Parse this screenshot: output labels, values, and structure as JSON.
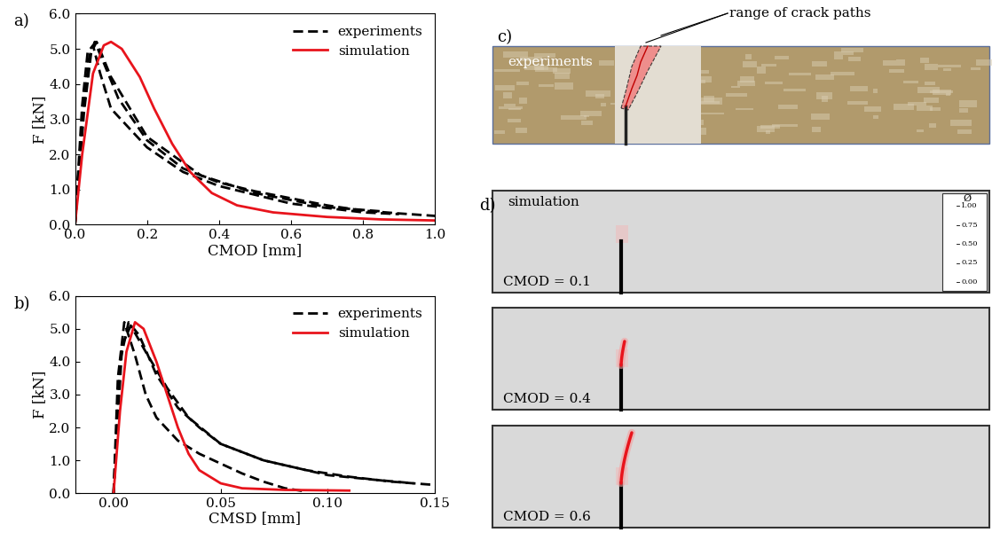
{
  "chart_data": [
    {
      "type": "line",
      "panel_label": "a)",
      "x_label": "CMOD [mm]",
      "y_label": "F [kN]",
      "xlim": [
        0.0,
        1.0
      ],
      "ylim": [
        0.0,
        6.0
      ],
      "xticks": [
        0.0,
        0.2,
        0.4,
        0.6,
        0.8,
        1.0
      ],
      "yticks": [
        0.0,
        1.0,
        2.0,
        3.0,
        4.0,
        5.0,
        6.0
      ],
      "legend": "upper right",
      "series": [
        {
          "name": "experiments",
          "color": "#000000",
          "line_style": "dashed",
          "x": [
            0,
            0.02,
            0.04,
            0.055,
            0.08,
            0.12,
            0.2,
            0.3,
            0.4,
            0.5,
            0.6,
            0.7,
            0.8,
            0.9,
            1.0
          ],
          "values": [
            0,
            3.0,
            4.8,
            5.2,
            4.6,
            3.6,
            2.4,
            1.6,
            1.2,
            0.95,
            0.75,
            0.55,
            0.4,
            0.32,
            0.25
          ]
        },
        {
          "name": "experiments",
          "color": "#000000",
          "line_style": "dashed",
          "x": [
            0,
            0.02,
            0.035,
            0.05,
            0.07,
            0.1,
            0.2,
            0.3,
            0.4,
            0.6,
            0.8,
            0.9
          ],
          "values": [
            0,
            3.4,
            4.9,
            5.1,
            4.3,
            3.3,
            2.2,
            1.5,
            1.1,
            0.6,
            0.35,
            0.3
          ]
        },
        {
          "name": "experiments",
          "color": "#000000",
          "line_style": "dashed",
          "x": [
            0,
            0.025,
            0.045,
            0.06,
            0.1,
            0.2,
            0.35,
            0.5,
            0.7,
            0.85
          ],
          "values": [
            0,
            3.2,
            4.9,
            5.2,
            4.2,
            2.5,
            1.4,
            0.9,
            0.5,
            0.38
          ]
        },
        {
          "name": "simulation",
          "color": "#e8141c",
          "line_style": "solid",
          "x": [
            0,
            0.02,
            0.05,
            0.08,
            0.1,
            0.13,
            0.18,
            0.22,
            0.27,
            0.32,
            0.38,
            0.45,
            0.55,
            0.7,
            0.85,
            1.0
          ],
          "values": [
            0,
            2.0,
            4.3,
            5.1,
            5.2,
            5.0,
            4.2,
            3.3,
            2.3,
            1.5,
            0.9,
            0.55,
            0.35,
            0.22,
            0.15,
            0.12
          ]
        }
      ]
    },
    {
      "type": "line",
      "panel_label": "b)",
      "x_label": "CMSD [mm]",
      "y_label": "F [kN]",
      "xlim": [
        -0.018,
        0.15
      ],
      "ylim": [
        0.0,
        6.0
      ],
      "xticks": [
        {
          "value": 0.0,
          "label": "0.00"
        },
        {
          "value": 0.05,
          "label": "0.05"
        },
        {
          "value": 0.1,
          "label": "0.10"
        },
        {
          "value": 0.15,
          "label": "0.15"
        }
      ],
      "yticks": [
        0.0,
        1.0,
        2.0,
        3.0,
        4.0,
        5.0,
        6.0
      ],
      "legend": "upper right",
      "series": [
        {
          "name": "experiments",
          "color": "#000000",
          "line_style": "dashed",
          "x": [
            0,
            0.002,
            0.005,
            0.01,
            0.015,
            0.02,
            0.03,
            0.04,
            0.05,
            0.06,
            0.07,
            0.08,
            0.09
          ],
          "values": [
            0,
            3.5,
            5.2,
            4.2,
            3.0,
            2.3,
            1.6,
            1.2,
            0.9,
            0.6,
            0.35,
            0.15,
            0.05
          ]
        },
        {
          "name": "experiments",
          "color": "#000000",
          "line_style": "dashed",
          "x": [
            0,
            0.003,
            0.007,
            0.012,
            0.02,
            0.03,
            0.04,
            0.05,
            0.07,
            0.09,
            0.11,
            0.13,
            0.15
          ],
          "values": [
            0,
            4.0,
            5.2,
            4.8,
            3.6,
            2.6,
            2.0,
            1.5,
            1.0,
            0.7,
            0.5,
            0.35,
            0.25
          ]
        },
        {
          "name": "experiments",
          "color": "#000000",
          "line_style": "dashed",
          "x": [
            0,
            0.004,
            0.008,
            0.015,
            0.025,
            0.035,
            0.05,
            0.07,
            0.1,
            0.12,
            0.14
          ],
          "values": [
            0,
            4.5,
            5.1,
            4.3,
            3.2,
            2.3,
            1.5,
            1.0,
            0.55,
            0.42,
            0.3
          ]
        },
        {
          "name": "simulation",
          "color": "#e8141c",
          "line_style": "solid",
          "x": [
            0,
            0.003,
            0.006,
            0.01,
            0.014,
            0.02,
            0.025,
            0.03,
            0.035,
            0.04,
            0.05,
            0.06,
            0.08,
            0.11
          ],
          "values": [
            0,
            2.5,
            4.3,
            5.2,
            5.0,
            4.0,
            3.0,
            2.0,
            1.2,
            0.7,
            0.3,
            0.15,
            0.1,
            0.08
          ]
        }
      ]
    }
  ],
  "photo": {
    "label": "c)",
    "text": "experiments",
    "annotation": "range of crack paths"
  },
  "simulation": {
    "label": "d)",
    "text": "simulation",
    "frames": [
      "CMOD = 0.1",
      "CMOD = 0.4",
      "CMOD = 0.6"
    ],
    "colorbar": {
      "title": "Ø",
      "range": [
        0.0,
        1.0
      ],
      "ticks": [
        {
          "value": 1.0,
          "label": "1.00"
        },
        {
          "value": 0.75,
          "label": "0.75"
        },
        {
          "value": 0.5,
          "label": "0.50"
        },
        {
          "value": 0.25,
          "label": "0.25"
        },
        {
          "value": 0.0,
          "label": "0.00"
        }
      ]
    }
  }
}
